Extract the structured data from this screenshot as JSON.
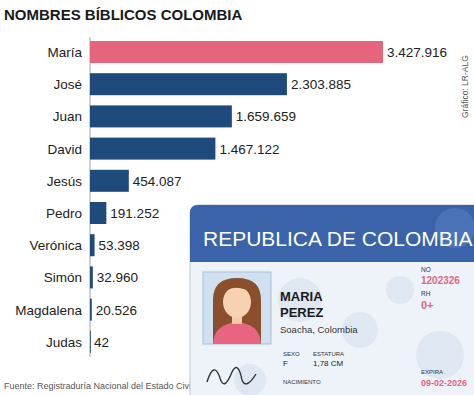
{
  "chart_data": {
    "type": "bar",
    "orientation": "horizontal",
    "title": "NOMBRES BÍBLICOS COLOMBIA",
    "categories": [
      "María",
      "José",
      "Juan",
      "David",
      "Jesús",
      "Pedro",
      "Verónica",
      "Simón",
      "Magdalena",
      "Judas"
    ],
    "values": [
      3427916,
      2303885,
      1659659,
      1467122,
      454087,
      191252,
      53398,
      32960,
      20526,
      42
    ],
    "value_labels": [
      "3.427.916",
      "2.303.885",
      "1.659.659",
      "1.467.122",
      "454.087",
      "191.252",
      "53.398",
      "32.960",
      "20.526",
      "42"
    ],
    "colors": [
      "#e5657d",
      "#1f4a7c",
      "#1f4a7c",
      "#1f4a7c",
      "#1f4a7c",
      "#1f4a7c",
      "#1f4a7c",
      "#1f4a7c",
      "#1f4a7c",
      "#1f4a7c"
    ],
    "xlim": [
      0,
      3427916
    ],
    "data_labels": true,
    "tick_labels": "y",
    "grid": false,
    "credit": "Gráfico: LR-ALG",
    "source": "Fuente: Registraduría Nacional del Estado Civil"
  },
  "id_card": {
    "header": "REPUBLICA DE COLOMBIA",
    "given_name": "MARIA",
    "surname": "PEREZ",
    "place": "Soacha, Colombia",
    "number_label": "NO",
    "number": "1202326",
    "rh_label": "RH",
    "rh": "0+",
    "sex_label": "SEXO",
    "sex": "F",
    "height_label": "ESTATURA",
    "height": "1,78 CM",
    "birth_label": "NACIMIENTO",
    "expiry_label": "EXPIRA",
    "expiry": "09-02-2026"
  }
}
